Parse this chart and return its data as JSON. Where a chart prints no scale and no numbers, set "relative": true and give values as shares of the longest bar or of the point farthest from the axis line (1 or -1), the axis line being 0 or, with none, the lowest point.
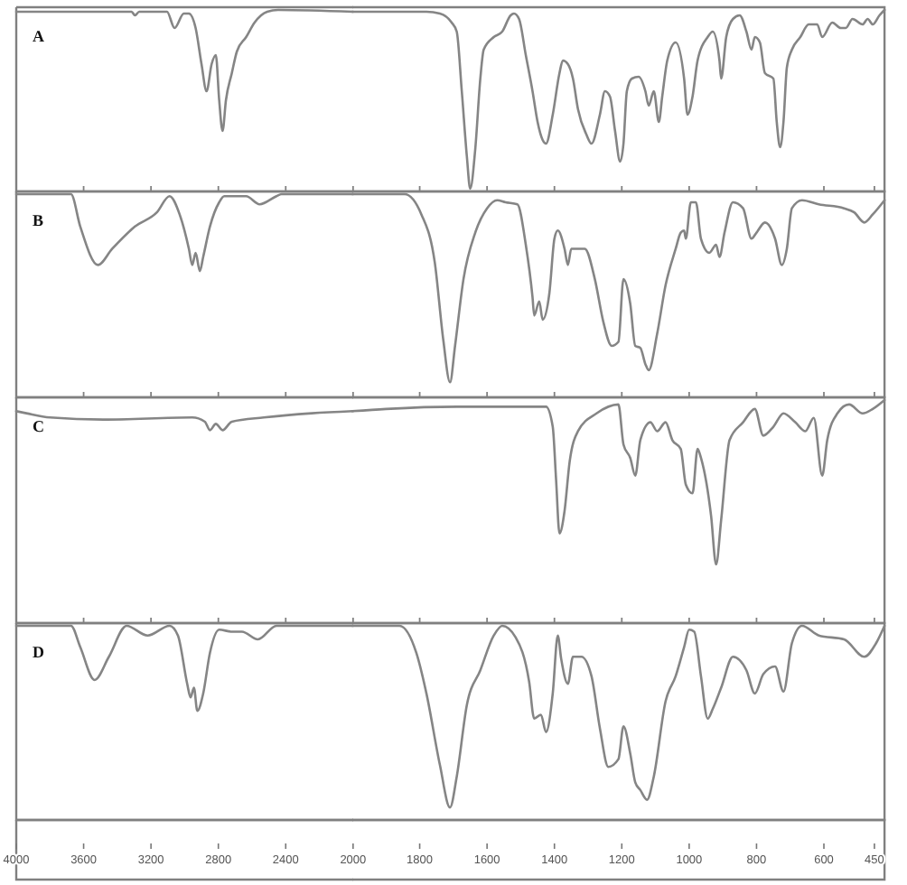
{
  "chart_data": [
    {
      "type": "line",
      "title": "A",
      "relative": true,
      "xlim": [
        4000,
        2000
      ],
      "tick_labels": false,
      "xticks": [
        3600,
        3200,
        2800,
        2400,
        2000
      ],
      "x": [
        4000,
        3380,
        3315,
        3295,
        3270,
        3105,
        3060,
        3005,
        2975,
        2935,
        2900,
        2870,
        2840,
        2815,
        2795,
        2775,
        2755,
        2720,
        2690,
        2635,
        2585,
        2510,
        2445,
        2000
      ],
      "series": [
        {
          "color": "#858585",
          "values": [
            0.99,
            0.99,
            0.99,
            0.97,
            0.99,
            0.99,
            0.9,
            0.98,
            0.98,
            0.9,
            0.7,
            0.55,
            0.7,
            0.75,
            0.5,
            0.33,
            0.5,
            0.65,
            0.77,
            0.85,
            0.93,
            0.99,
            1.0,
            0.99
          ]
        }
      ]
    },
    {
      "type": "line",
      "relative": true,
      "xlim": [
        2000,
        420
      ],
      "tick_labels": false,
      "xticks": [
        1800,
        1600,
        1400,
        1200,
        1000,
        800,
        600,
        450
      ],
      "x": [
        2000,
        1780,
        1740,
        1705,
        1690,
        1675,
        1660,
        1650,
        1635,
        1620,
        1610,
        1580,
        1555,
        1530,
        1520,
        1505,
        1485,
        1465,
        1450,
        1435,
        1425,
        1405,
        1385,
        1375,
        1360,
        1345,
        1330,
        1305,
        1290,
        1265,
        1250,
        1235,
        1220,
        1205,
        1195,
        1185,
        1170,
        1150,
        1130,
        1120,
        1105,
        1090,
        1080,
        1065,
        1040,
        1015,
        1005,
        990,
        975,
        945,
        930,
        910,
        905,
        890,
        870,
        850,
        830,
        815,
        805,
        790,
        775,
        750,
        740,
        730,
        720,
        710,
        695,
        670,
        645,
        620,
        605,
        575,
        550,
        535,
        515,
        485,
        470,
        455,
        435,
        420
      ],
      "series": [
        {
          "color": "#858585",
          "values": [
            0.99,
            0.99,
            0.98,
            0.93,
            0.88,
            0.55,
            0.19,
            0.01,
            0.23,
            0.62,
            0.78,
            0.85,
            0.88,
            0.97,
            0.98,
            0.95,
            0.75,
            0.55,
            0.38,
            0.28,
            0.26,
            0.42,
            0.65,
            0.72,
            0.7,
            0.62,
            0.45,
            0.31,
            0.26,
            0.42,
            0.55,
            0.52,
            0.33,
            0.16,
            0.26,
            0.55,
            0.62,
            0.63,
            0.55,
            0.47,
            0.55,
            0.38,
            0.52,
            0.72,
            0.82,
            0.62,
            0.42,
            0.52,
            0.72,
            0.85,
            0.88,
            0.72,
            0.62,
            0.85,
            0.95,
            0.97,
            0.88,
            0.78,
            0.85,
            0.82,
            0.65,
            0.62,
            0.38,
            0.24,
            0.38,
            0.68,
            0.78,
            0.85,
            0.92,
            0.92,
            0.85,
            0.93,
            0.9,
            0.9,
            0.95,
            0.92,
            0.95,
            0.92,
            0.97,
            1.0
          ]
        }
      ]
    },
    {
      "type": "line",
      "title": "B",
      "relative": true,
      "xlim": [
        4000,
        2000
      ],
      "tick_labels": false,
      "xticks": [
        3600,
        3200,
        2800,
        2400,
        2000
      ],
      "x": [
        4000,
        3675,
        3620,
        3515,
        3430,
        3295,
        3165,
        3090,
        3030,
        2975,
        2955,
        2935,
        2910,
        2890,
        2850,
        2795,
        2765,
        2635,
        2555,
        2455,
        2425,
        2000
      ],
      "series": [
        {
          "color": "#858585",
          "values": [
            1.0,
            1.0,
            0.84,
            0.65,
            0.73,
            0.84,
            0.91,
            0.99,
            0.9,
            0.73,
            0.65,
            0.71,
            0.62,
            0.69,
            0.84,
            0.96,
            0.99,
            0.99,
            0.95,
            0.99,
            1.0,
            1.0
          ]
        }
      ]
    },
    {
      "type": "line",
      "relative": true,
      "xlim": [
        2000,
        420
      ],
      "tick_labels": false,
      "xticks": [
        1800,
        1600,
        1400,
        1200,
        1000,
        800,
        600,
        450
      ],
      "x": [
        2000,
        1845,
        1795,
        1755,
        1730,
        1710,
        1695,
        1670,
        1635,
        1600,
        1570,
        1545,
        1510,
        1485,
        1465,
        1460,
        1445,
        1435,
        1415,
        1400,
        1390,
        1370,
        1360,
        1350,
        1335,
        1310,
        1280,
        1255,
        1230,
        1210,
        1195,
        1175,
        1160,
        1145,
        1130,
        1120,
        1095,
        1070,
        1040,
        1025,
        1015,
        1010,
        995,
        980,
        965,
        940,
        920,
        910,
        895,
        870,
        840,
        815,
        800,
        775,
        745,
        725,
        710,
        695,
        665,
        615,
        540,
        510,
        480,
        455,
        420
      ],
      "series": [
        {
          "color": "#858585",
          "values": [
            1.0,
            1.0,
            0.9,
            0.66,
            0.28,
            0.07,
            0.25,
            0.58,
            0.81,
            0.93,
            0.97,
            0.96,
            0.95,
            0.75,
            0.49,
            0.4,
            0.47,
            0.38,
            0.51,
            0.78,
            0.82,
            0.73,
            0.65,
            0.73,
            0.73,
            0.73,
            0.58,
            0.37,
            0.25,
            0.27,
            0.58,
            0.46,
            0.25,
            0.24,
            0.16,
            0.13,
            0.31,
            0.55,
            0.73,
            0.81,
            0.82,
            0.78,
            0.96,
            0.96,
            0.78,
            0.71,
            0.75,
            0.69,
            0.81,
            0.96,
            0.93,
            0.78,
            0.81,
            0.86,
            0.78,
            0.65,
            0.73,
            0.93,
            0.97,
            0.95,
            0.93,
            0.91,
            0.86,
            0.9,
            0.97
          ]
        }
      ]
    },
    {
      "type": "line",
      "title": "C",
      "relative": true,
      "xlim": [
        4000,
        2000
      ],
      "tick_labels": false,
      "xticks": [
        3600,
        3200,
        2800,
        2400,
        2000
      ],
      "x": [
        4000,
        3940,
        3800,
        3485,
        2955,
        2880,
        2850,
        2815,
        2775,
        2720,
        2530,
        2245,
        2000
      ],
      "series": [
        {
          "color": "#858585",
          "values": [
            1.0,
            0.99,
            0.97,
            0.96,
            0.97,
            0.95,
            0.91,
            0.94,
            0.91,
            0.95,
            0.97,
            0.99,
            1.0
          ]
        }
      ]
    },
    {
      "type": "line",
      "relative": true,
      "xlim": [
        2000,
        420
      ],
      "tick_labels": false,
      "xticks": [
        1800,
        1600,
        1400,
        1200,
        1000,
        800,
        600,
        450
      ],
      "x": [
        2000,
        1900,
        1690,
        1425,
        1405,
        1395,
        1385,
        1370,
        1355,
        1330,
        1275,
        1210,
        1195,
        1175,
        1160,
        1145,
        1115,
        1095,
        1070,
        1050,
        1025,
        1010,
        990,
        975,
        965,
        935,
        920,
        905,
        880,
        840,
        805,
        780,
        750,
        720,
        685,
        655,
        630,
        605,
        590,
        560,
        525,
        485,
        455,
        420
      ],
      "series": [
        {
          "color": "#858585",
          "values": [
            0.95,
            0.96,
            0.97,
            0.97,
            0.88,
            0.64,
            0.4,
            0.5,
            0.72,
            0.86,
            0.94,
            0.98,
            0.8,
            0.74,
            0.66,
            0.82,
            0.9,
            0.86,
            0.9,
            0.82,
            0.78,
            0.62,
            0.58,
            0.78,
            0.74,
            0.48,
            0.26,
            0.46,
            0.82,
            0.9,
            0.96,
            0.84,
            0.88,
            0.94,
            0.9,
            0.86,
            0.92,
            0.66,
            0.82,
            0.94,
            0.98,
            0.94,
            0.96,
            1.0
          ]
        }
      ]
    },
    {
      "type": "line",
      "title": "D",
      "relative": true,
      "xlim": [
        4000,
        2000
      ],
      "tick_labels": "x",
      "xticks": [
        4000,
        3600,
        3200,
        2800,
        2400,
        2000
      ],
      "x": [
        4000,
        3675,
        3620,
        3535,
        3450,
        3345,
        3220,
        3090,
        3040,
        2985,
        2965,
        2945,
        2925,
        2890,
        2850,
        2795,
        2720,
        2660,
        2565,
        2455,
        2000
      ],
      "series": [
        {
          "color": "#858585",
          "values": [
            1.0,
            1.0,
            0.89,
            0.72,
            0.84,
            1.0,
            0.95,
            1.0,
            0.95,
            0.7,
            0.63,
            0.68,
            0.56,
            0.65,
            0.86,
            0.98,
            0.97,
            0.97,
            0.93,
            1.0,
            1.0
          ]
        }
      ]
    },
    {
      "type": "line",
      "relative": true,
      "xlim": [
        2000,
        420
      ],
      "tick_labels": "x",
      "xticks": [
        1800,
        1600,
        1400,
        1200,
        1000,
        800,
        600,
        450
      ],
      "x": [
        2000,
        1860,
        1810,
        1780,
        1740,
        1710,
        1690,
        1660,
        1620,
        1580,
        1555,
        1515,
        1475,
        1460,
        1440,
        1425,
        1405,
        1390,
        1380,
        1360,
        1345,
        1320,
        1290,
        1265,
        1240,
        1210,
        1195,
        1175,
        1160,
        1145,
        1125,
        1105,
        1070,
        1040,
        1015,
        1000,
        985,
        965,
        945,
        930,
        905,
        870,
        830,
        805,
        780,
        745,
        720,
        695,
        665,
        615,
        540,
        480,
        445,
        420
      ],
      "series": [
        {
          "color": "#858585",
          "values": [
            1.0,
            1.0,
            0.86,
            0.65,
            0.28,
            0.06,
            0.22,
            0.59,
            0.77,
            0.95,
            1.0,
            0.94,
            0.71,
            0.52,
            0.54,
            0.45,
            0.65,
            0.95,
            0.83,
            0.7,
            0.84,
            0.84,
            0.74,
            0.47,
            0.27,
            0.31,
            0.48,
            0.34,
            0.19,
            0.15,
            0.1,
            0.22,
            0.61,
            0.74,
            0.89,
            0.98,
            0.97,
            0.74,
            0.52,
            0.57,
            0.68,
            0.84,
            0.77,
            0.65,
            0.75,
            0.79,
            0.66,
            0.91,
            1.0,
            0.95,
            0.93,
            0.84,
            0.91,
            1.0
          ]
        }
      ]
    }
  ]
}
